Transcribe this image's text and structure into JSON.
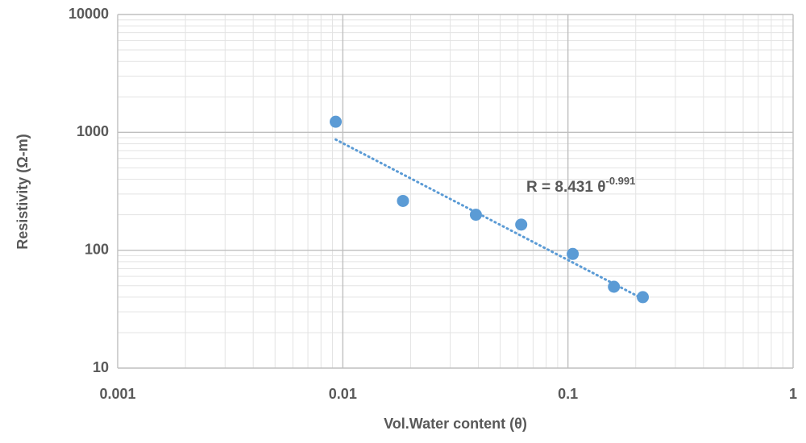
{
  "chart_data": {
    "type": "scatter",
    "title": "",
    "xlabel": "Vol.Water content (θ)",
    "ylabel": "Resistivity (Ω-m)",
    "x_scale": "log",
    "y_scale": "log",
    "xlim": [
      0.001,
      1
    ],
    "ylim": [
      10,
      10000
    ],
    "x_ticks": [
      "0.001",
      "0.01",
      "0.1",
      "1"
    ],
    "y_ticks": [
      "10",
      "100",
      "1000",
      "10000"
    ],
    "grid": true,
    "legend": "none",
    "colors": {
      "points": "#5b9bd5",
      "trendline": "#5b9bd5",
      "major_grid": "#bfbfbf",
      "minor_grid": "#e3e3e3",
      "text": "#595959"
    },
    "series": [
      {
        "points": [
          {
            "x": 0.0093,
            "y": 1230
          },
          {
            "x": 0.0185,
            "y": 262
          },
          {
            "x": 0.039,
            "y": 200
          },
          {
            "x": 0.062,
            "y": 165
          },
          {
            "x": 0.105,
            "y": 93
          },
          {
            "x": 0.16,
            "y": 49
          },
          {
            "x": 0.215,
            "y": 40
          }
        ]
      }
    ],
    "trendline": {
      "type": "power",
      "coefficient": 8.431,
      "exponent": -0.991,
      "x_range": [
        0.0093,
        0.215
      ],
      "equation_main": "R = 8.431 θ",
      "equation_exponent": "-0.991"
    }
  }
}
